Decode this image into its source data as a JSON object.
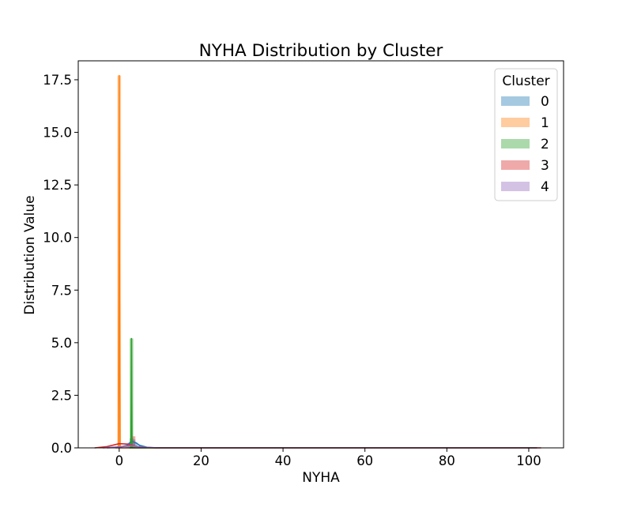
{
  "chart_data": {
    "type": "line",
    "title": "NYHA Distribution by Cluster",
    "xlabel": "NYHA",
    "ylabel": "Distribution Value",
    "xlim": [
      -10,
      108.5
    ],
    "ylim": [
      0,
      18.4
    ],
    "x_ticks": [
      0,
      20,
      40,
      60,
      80,
      100
    ],
    "y_ticks": [
      0.0,
      2.5,
      5.0,
      7.5,
      10.0,
      12.5,
      15.0,
      17.5
    ],
    "x_tick_labels": [
      "0",
      "20",
      "40",
      "60",
      "80",
      "100"
    ],
    "y_tick_labels": [
      "0.0",
      "2.5",
      "5.0",
      "7.5",
      "10.0",
      "12.5",
      "15.0",
      "17.5"
    ],
    "grid": false,
    "legend": {
      "title": "Cluster",
      "placement": "top-right"
    },
    "series": [
      {
        "name": "0",
        "color": "#1f77b4",
        "histogram": [
          [
            2.0,
            0.05
          ],
          [
            2.5,
            0.25
          ],
          [
            3.0,
            0.45
          ],
          [
            3.5,
            0.4
          ],
          [
            4.0,
            0.25
          ]
        ],
        "kde": [
          [
            -3,
            0.0
          ],
          [
            0,
            0.03
          ],
          [
            2,
            0.12
          ],
          [
            3,
            0.32
          ],
          [
            4,
            0.25
          ],
          [
            5,
            0.12
          ],
          [
            7,
            0.02
          ],
          [
            9,
            0.0
          ],
          [
            102,
            0.0
          ]
        ]
      },
      {
        "name": "1",
        "color": "#ff7f0e",
        "histogram": [
          [
            0.0,
            17.7
          ]
        ],
        "kde": [
          [
            -0.9,
            0.0
          ],
          [
            -0.2,
            0.0
          ],
          [
            -0.08,
            8.0
          ],
          [
            0.0,
            17.7
          ],
          [
            0.08,
            8.0
          ],
          [
            0.2,
            0.0
          ],
          [
            102,
            0.0
          ]
        ]
      },
      {
        "name": "2",
        "color": "#2ca02c",
        "histogram": [
          [
            3.0,
            5.2
          ]
        ],
        "kde": [
          [
            2.5,
            0.0
          ],
          [
            2.88,
            0.0
          ],
          [
            2.95,
            2.5
          ],
          [
            3.0,
            5.2
          ],
          [
            3.05,
            2.5
          ],
          [
            3.12,
            0.0
          ],
          [
            102,
            0.0
          ]
        ]
      },
      {
        "name": "3",
        "color": "#d62728",
        "histogram": [
          [
            3.5,
            0.55
          ]
        ],
        "kde": [
          [
            -6,
            0.0
          ],
          [
            -3,
            0.06
          ],
          [
            0,
            0.2
          ],
          [
            2,
            0.18
          ],
          [
            4,
            0.08
          ],
          [
            6,
            0.02
          ],
          [
            9,
            0.0
          ],
          [
            103,
            0.0
          ]
        ]
      },
      {
        "name": "4",
        "color": "#9467bd",
        "histogram": [
          [
            3.0,
            0.15
          ]
        ],
        "kde": [
          [
            -4,
            0.0
          ],
          [
            0,
            0.05
          ],
          [
            3,
            0.1
          ],
          [
            6,
            0.03
          ],
          [
            10,
            0.0
          ],
          [
            102,
            0.0
          ]
        ]
      }
    ]
  }
}
